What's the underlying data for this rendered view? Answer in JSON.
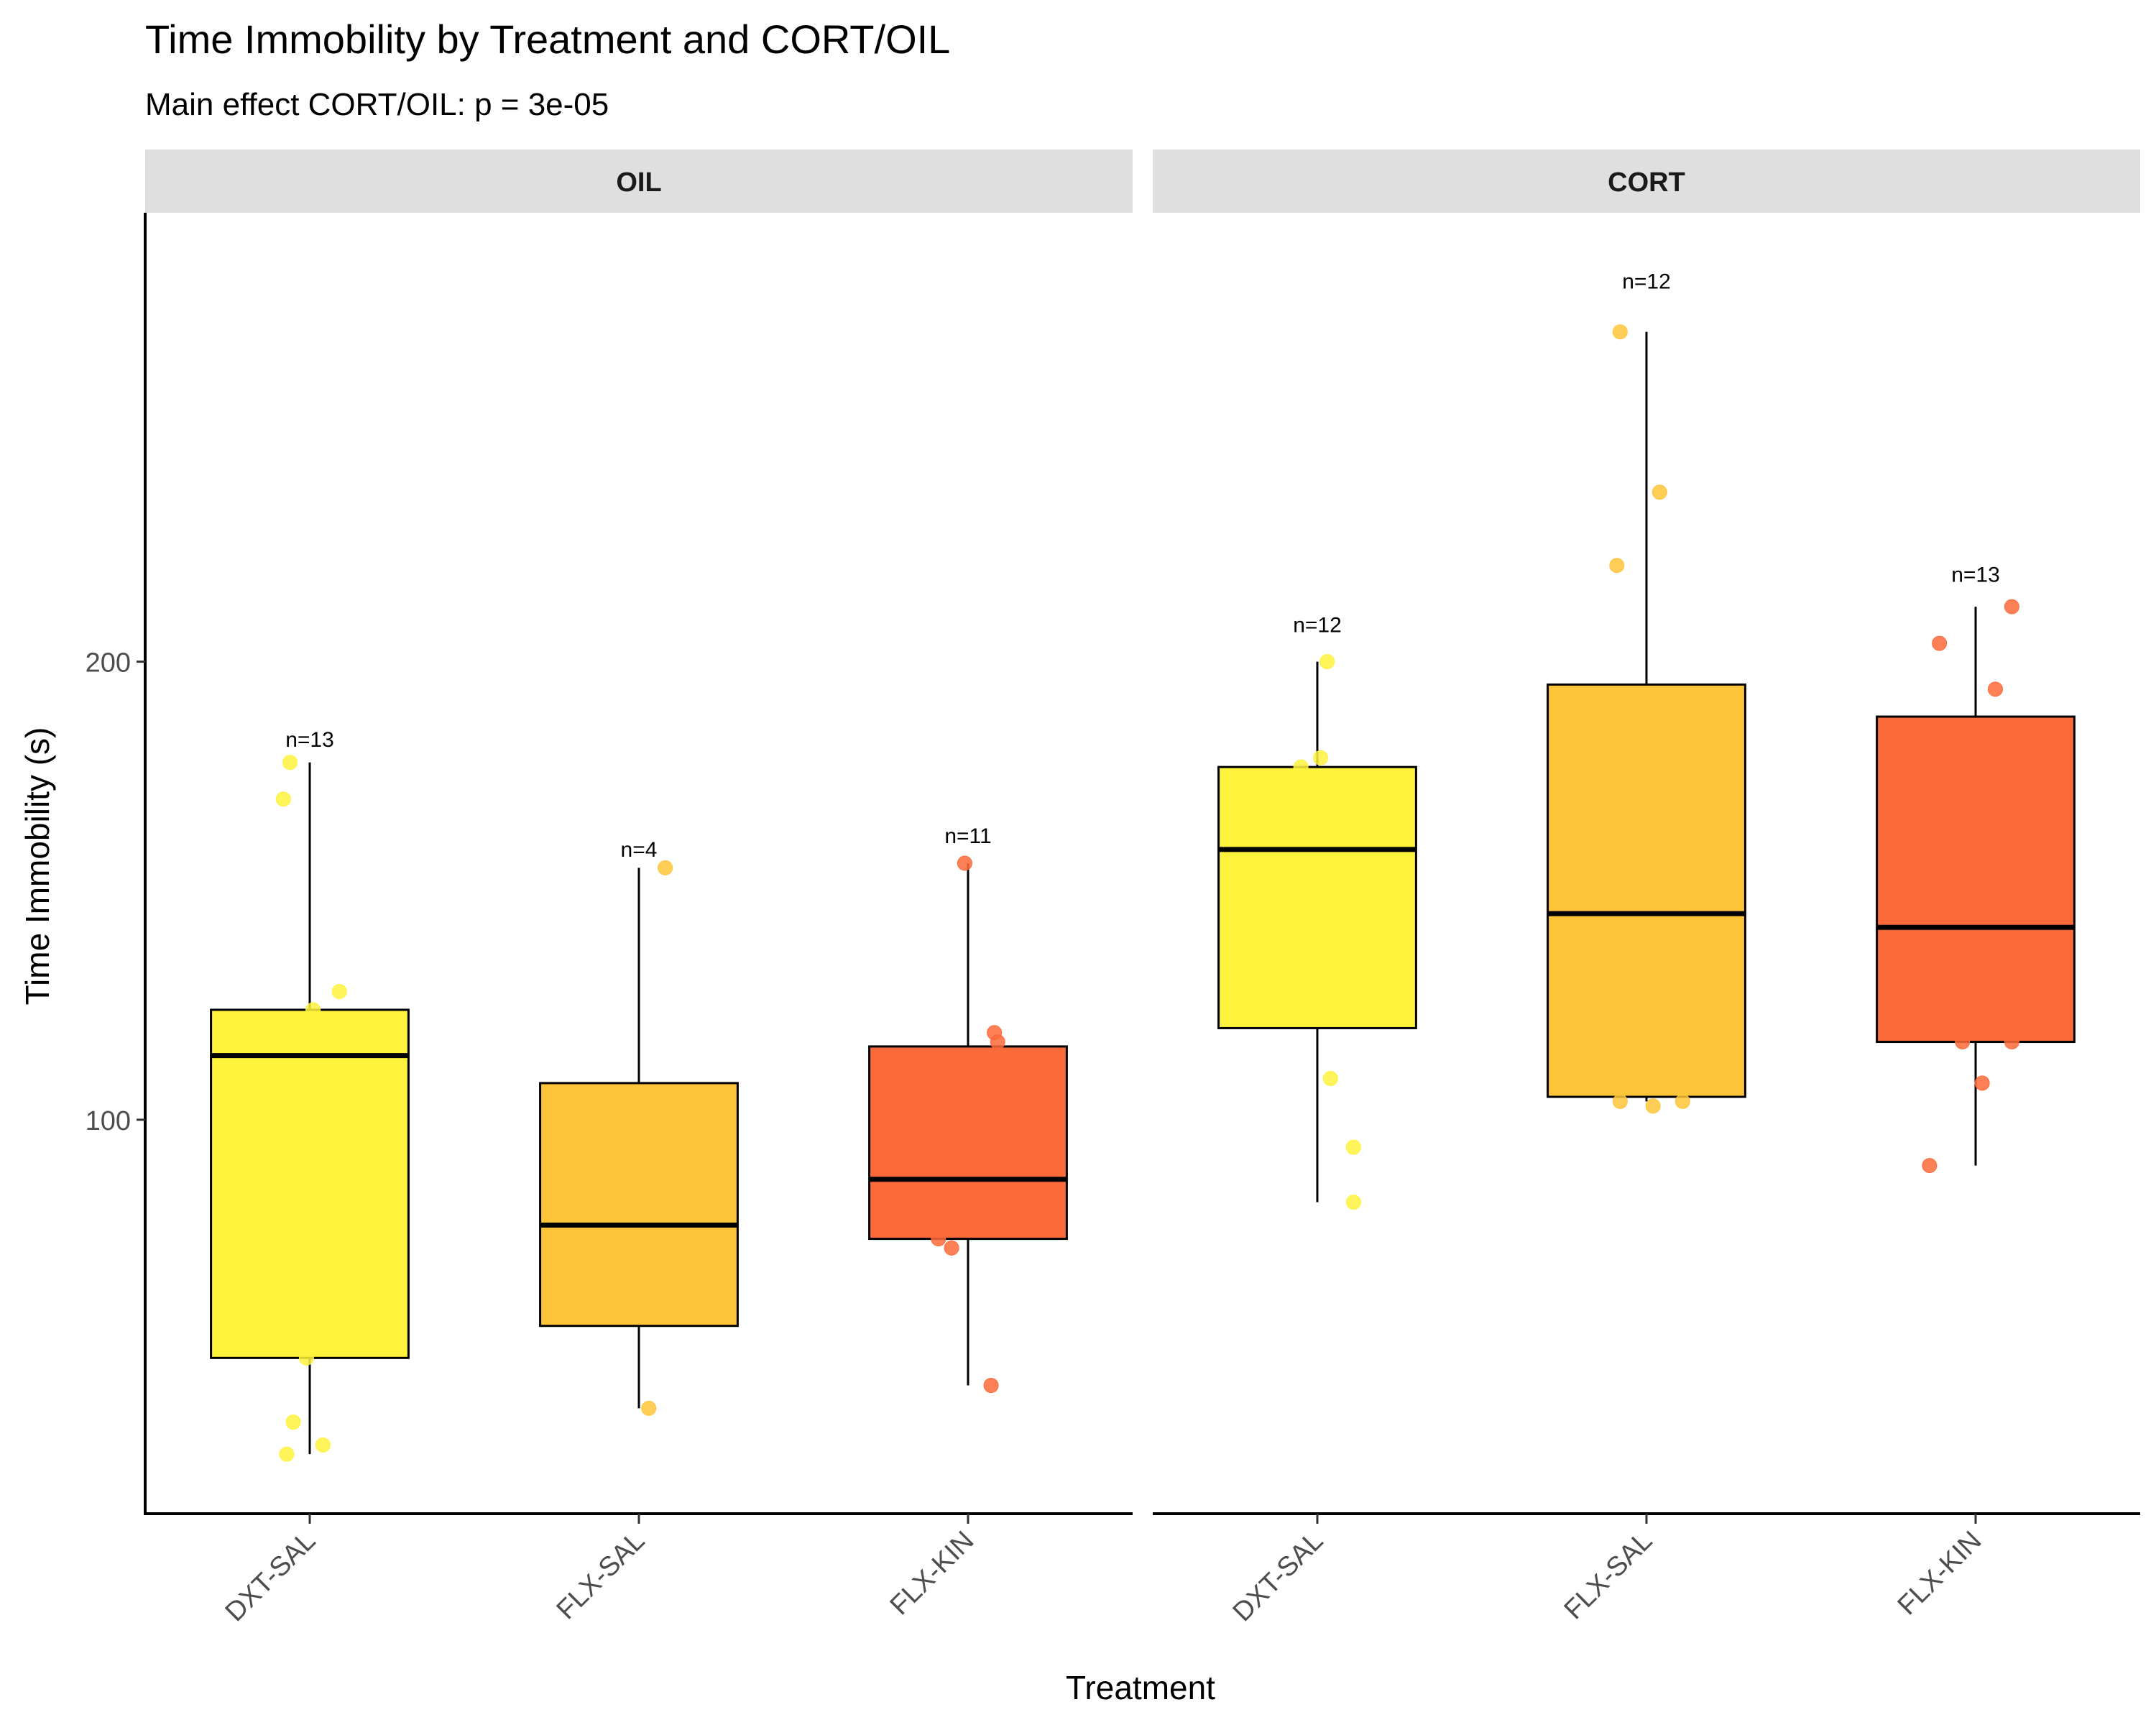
{
  "chart_data": {
    "type": "boxplot",
    "title": "Time Immobility by Treatment and CORT/OIL",
    "subtitle": "Main effect CORT/OIL: p = 3e-05",
    "xlabel": "Treatment",
    "ylabel": "Time Immobility (s)",
    "ylim": [
      14,
      298
    ],
    "yticks": [
      100,
      200
    ],
    "categories": [
      "DXT-SAL",
      "FLX-SAL",
      "FLX-KIN"
    ],
    "colors": {
      "DXT-SAL": "#FFF23D",
      "FLX-SAL": "#FEC53A",
      "FLX-KIN": "#FD6A3A"
    },
    "panels": [
      {
        "label": "OIL",
        "groups": [
          {
            "category": "DXT-SAL",
            "n_label": "n=13",
            "n_y": 183,
            "box": {
              "whisker_low": 27,
              "q1": 48,
              "median": 114,
              "q3": 124,
              "whisker_high": 178
            },
            "points": [
              [
                -0.06,
                178
              ],
              [
                -0.08,
                170
              ],
              [
                0.09,
                128
              ],
              [
                0.01,
                124
              ],
              [
                -0.05,
                116
              ],
              [
                0.01,
                116
              ],
              [
                -0.01,
                48
              ],
              [
                -0.05,
                34
              ],
              [
                0.04,
                29
              ],
              [
                -0.07,
                27
              ]
            ]
          },
          {
            "category": "FLX-SAL",
            "n_label": "n=4",
            "n_y": 159,
            "box": {
              "whisker_low": 37,
              "q1": 55,
              "median": 77,
              "q3": 108,
              "whisker_high": 155
            },
            "points": [
              [
                0.08,
                155
              ],
              [
                0.03,
                37
              ]
            ]
          },
          {
            "category": "FLX-KIN",
            "n_label": "n=11",
            "n_y": 162,
            "box": {
              "whisker_low": 42,
              "q1": 74,
              "median": 87,
              "q3": 116,
              "whisker_high": 156
            },
            "points": [
              [
                -0.01,
                156
              ],
              [
                0.08,
                119
              ],
              [
                0.09,
                117
              ],
              [
                0.1,
                87
              ],
              [
                -0.09,
                74
              ],
              [
                -0.05,
                72
              ],
              [
                0.07,
                42
              ]
            ]
          }
        ]
      },
      {
        "label": "CORT",
        "groups": [
          {
            "category": "DXT-SAL",
            "n_label": "n=12",
            "n_y": 208,
            "box": {
              "whisker_low": 82,
              "q1": 120,
              "median": 159,
              "q3": 177,
              "whisker_high": 200
            },
            "points": [
              [
                0.03,
                200
              ],
              [
                0.01,
                179
              ],
              [
                -0.05,
                177
              ],
              [
                0.04,
                109
              ],
              [
                0.11,
                94
              ],
              [
                0.11,
                82
              ]
            ]
          },
          {
            "category": "FLX-SAL",
            "n_label": "n=12",
            "n_y": 283,
            "box": {
              "whisker_low": 104,
              "q1": 105,
              "median": 145,
              "q3": 195,
              "whisker_high": 272
            },
            "points": [
              [
                -0.08,
                272
              ],
              [
                0.04,
                237
              ],
              [
                -0.09,
                221
              ],
              [
                0.11,
                145
              ],
              [
                -0.08,
                104
              ],
              [
                0.11,
                104
              ],
              [
                0.02,
                103
              ]
            ]
          },
          {
            "category": "FLX-KIN",
            "n_label": "n=13",
            "n_y": 219,
            "box": {
              "whisker_low": 90,
              "q1": 117,
              "median": 142,
              "q3": 188,
              "whisker_high": 212
            },
            "points": [
              [
                0.11,
                212
              ],
              [
                -0.11,
                204
              ],
              [
                0.06,
                194
              ],
              [
                -0.04,
                117
              ],
              [
                0.11,
                117
              ],
              [
                0.02,
                108
              ],
              [
                -0.14,
                90
              ]
            ]
          }
        ]
      }
    ]
  }
}
